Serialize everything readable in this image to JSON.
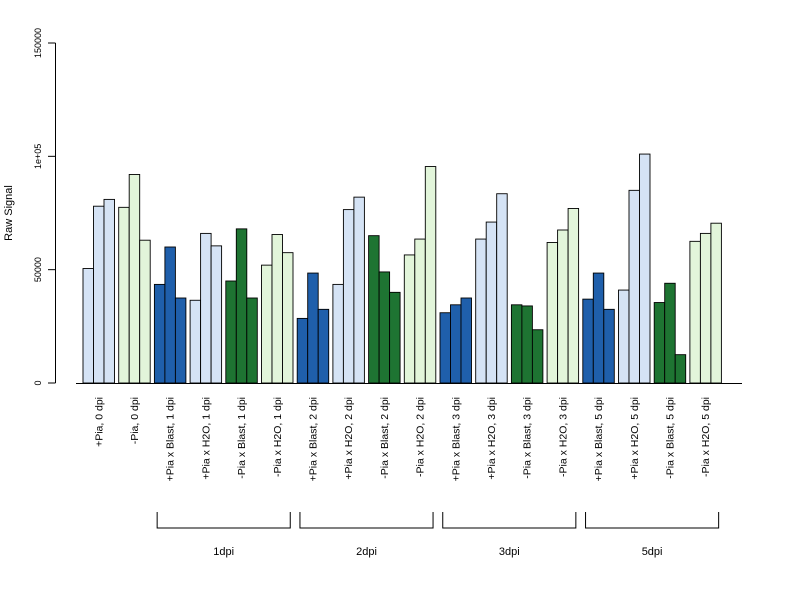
{
  "chart_data": {
    "type": "bar",
    "ylabel": "Raw Signal",
    "ylim": [
      0,
      150000
    ],
    "yticks": [
      {
        "value": 0,
        "label": "0"
      },
      {
        "value": 50000,
        "label": "50000"
      },
      {
        "value": 100000,
        "label": "1e+05"
      },
      {
        "value": 150000,
        "label": "150000"
      }
    ],
    "colors": {
      "pia_pos": "#d5e3f5",
      "pia_neg": "#e2f5da",
      "blast_pos": "#1f5fab",
      "blast_neg": "#1e7432"
    },
    "categories": [
      {
        "label": "+Pia, 0 dpi",
        "color": "#d5e3f5",
        "values": [
          50500,
          78000,
          81000
        ]
      },
      {
        "label": "-Pia, 0 dpi",
        "color": "#e2f5da",
        "values": [
          77500,
          92000,
          63000
        ]
      },
      {
        "label": "+Pia x Blast, 1 dpi",
        "color": "#1f5fab",
        "values": [
          43500,
          60000,
          37500
        ]
      },
      {
        "label": "+Pia x H2O, 1 dpi",
        "color": "#d5e3f5",
        "values": [
          36500,
          66000,
          60500
        ]
      },
      {
        "label": "-Pia x Blast, 1 dpi",
        "color": "#1e7432",
        "values": [
          45000,
          68000,
          37500
        ]
      },
      {
        "label": "-Pia x H2O, 1 dpi",
        "color": "#e2f5da",
        "values": [
          52000,
          65500,
          57500
        ]
      },
      {
        "label": "+Pia x Blast, 2 dpi",
        "color": "#1f5fab",
        "values": [
          28500,
          48500,
          32500
        ]
      },
      {
        "label": "+Pia x H2O, 2 dpi",
        "color": "#d5e3f5",
        "values": [
          43500,
          76500,
          82000
        ]
      },
      {
        "label": "-Pia x Blast, 2 dpi",
        "color": "#1e7432",
        "values": [
          65000,
          49000,
          40000
        ]
      },
      {
        "label": "-Pia x H2O, 2 dpi",
        "color": "#e2f5da",
        "values": [
          56500,
          63500,
          95500
        ]
      },
      {
        "label": "+Pia x Blast, 3 dpi",
        "color": "#1f5fab",
        "values": [
          31000,
          34500,
          37500
        ]
      },
      {
        "label": "+Pia x H2O, 3 dpi",
        "color": "#d5e3f5",
        "values": [
          63500,
          71000,
          83500
        ]
      },
      {
        "label": "-Pia x Blast, 3 dpi",
        "color": "#1e7432",
        "values": [
          34500,
          34000,
          23500
        ]
      },
      {
        "label": "-Pia x H2O, 3 dpi",
        "color": "#e2f5da",
        "values": [
          62000,
          67500,
          77000
        ]
      },
      {
        "label": "+Pia x Blast, 5 dpi",
        "color": "#1f5fab",
        "values": [
          37000,
          48500,
          32500
        ]
      },
      {
        "label": "+Pia x H2O, 5 dpi",
        "color": "#d5e3f5",
        "values": [
          41000,
          85000,
          101000
        ]
      },
      {
        "label": "-Pia x Blast, 5 dpi",
        "color": "#1e7432",
        "values": [
          35500,
          44000,
          12500
        ]
      },
      {
        "label": "-Pia x H2O, 5 dpi",
        "color": "#e2f5da",
        "values": [
          62500,
          66000,
          70500
        ]
      }
    ],
    "groups": [
      {
        "label": "1dpi",
        "from": 2,
        "to": 5
      },
      {
        "label": "2dpi",
        "from": 6,
        "to": 9
      },
      {
        "label": "3dpi",
        "from": 10,
        "to": 13
      },
      {
        "label": "5dpi",
        "from": 14,
        "to": 17
      }
    ]
  }
}
